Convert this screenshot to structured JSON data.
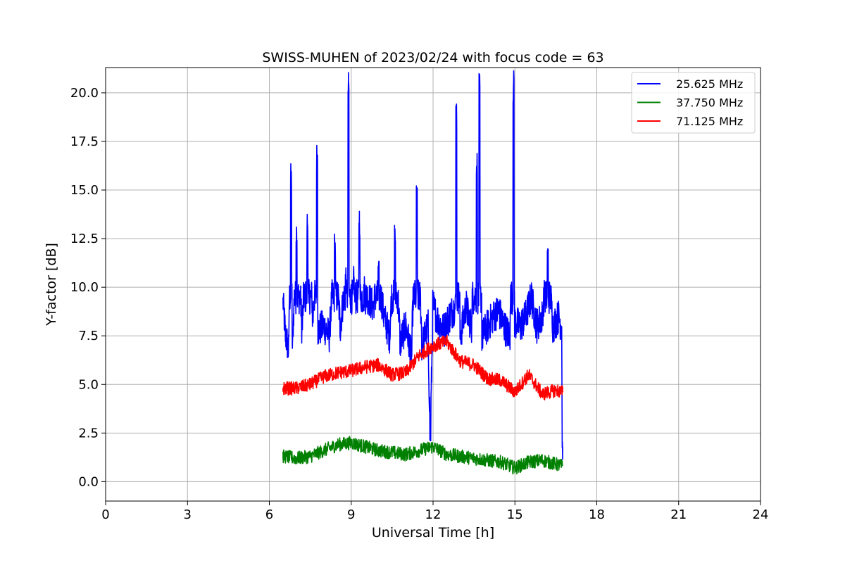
{
  "chart_data": {
    "type": "line",
    "title": "SWISS-MUHEN of 2023/02/24 with focus code = 63",
    "xlabel": "Universal Time [h]",
    "ylabel": "Y-factor [dB]",
    "xlim": [
      0,
      24
    ],
    "ylim": [
      -1.0,
      21.3
    ],
    "xticks": [
      0,
      3,
      6,
      9,
      12,
      15,
      18,
      21,
      24
    ],
    "xtick_labels": [
      "0",
      "3",
      "6",
      "9",
      "12",
      "15",
      "18",
      "21",
      "24"
    ],
    "yticks": [
      0.0,
      2.5,
      5.0,
      7.5,
      10.0,
      12.5,
      15.0,
      17.5,
      20.0
    ],
    "ytick_labels": [
      "0.0",
      "2.5",
      "5.0",
      "7.5",
      "10.0",
      "12.5",
      "15.0",
      "17.5",
      "20.0"
    ],
    "grid": true,
    "legend_position": "top-right",
    "series": [
      {
        "name": "25.625 MHz",
        "color": "#0000ff",
        "x": [
          6.5,
          6.6,
          6.7,
          6.8,
          6.85,
          7.0,
          7.2,
          7.4,
          7.6,
          7.75,
          7.8,
          8.0,
          8.2,
          8.4,
          8.6,
          8.8,
          8.9,
          8.95,
          9.1,
          9.3,
          9.5,
          9.8,
          10.0,
          10.2,
          10.4,
          10.6,
          10.8,
          11.0,
          11.2,
          11.4,
          11.6,
          11.8,
          11.9,
          12.0,
          12.2,
          12.4,
          12.6,
          12.8,
          12.85,
          13.0,
          13.2,
          13.4,
          13.6,
          13.7,
          13.8,
          14.0,
          14.2,
          14.4,
          14.6,
          14.8,
          14.95,
          15.0,
          15.2,
          15.4,
          15.6,
          15.8,
          16.0,
          16.2,
          16.4,
          16.6,
          16.7,
          16.75
        ],
        "y": [
          9.2,
          7.5,
          6.8,
          15.5,
          7.2,
          12.8,
          8.0,
          13.2,
          8.5,
          16.6,
          7.8,
          8.0,
          7.5,
          12.0,
          8.0,
          10.5,
          20.2,
          9.5,
          10.2,
          13.5,
          9.8,
          9.0,
          10.5,
          8.5,
          7.5,
          12.5,
          7.2,
          8.0,
          6.5,
          14.4,
          7.0,
          8.0,
          2.5,
          9.0,
          8.2,
          7.8,
          8.5,
          9.0,
          19.0,
          7.5,
          9.0,
          8.0,
          16.2,
          20.1,
          7.5,
          8.0,
          8.5,
          8.8,
          8.0,
          7.5,
          20.3,
          8.2,
          8.0,
          8.5,
          9.5,
          8.0,
          8.5,
          11.5,
          8.0,
          8.5,
          8.0,
          1.8
        ]
      },
      {
        "name": "37.750 MHz",
        "color": "#008000",
        "x": [
          6.5,
          7.0,
          7.5,
          8.0,
          8.5,
          9.0,
          9.5,
          10.0,
          10.5,
          11.0,
          11.5,
          12.0,
          12.5,
          13.0,
          13.5,
          14.0,
          14.5,
          15.0,
          15.5,
          16.0,
          16.5,
          16.75
        ],
        "y": [
          1.3,
          1.2,
          1.3,
          1.6,
          1.9,
          2.0,
          1.8,
          1.6,
          1.5,
          1.4,
          1.6,
          1.8,
          1.4,
          1.3,
          1.2,
          1.1,
          1.0,
          0.7,
          1.0,
          1.1,
          0.9,
          0.8
        ]
      },
      {
        "name": "71.125 MHz",
        "color": "#ff0000",
        "x": [
          6.5,
          7.0,
          7.5,
          8.0,
          8.5,
          9.0,
          9.5,
          10.0,
          10.5,
          11.0,
          11.5,
          12.0,
          12.5,
          13.0,
          13.5,
          14.0,
          14.5,
          15.0,
          15.5,
          16.0,
          16.5,
          16.75
        ],
        "y": [
          4.8,
          4.8,
          5.0,
          5.4,
          5.6,
          5.7,
          5.9,
          6.0,
          5.5,
          5.6,
          6.5,
          7.0,
          7.2,
          6.2,
          6.0,
          5.3,
          5.2,
          4.6,
          5.5,
          4.5,
          4.7,
          4.6
        ]
      }
    ]
  }
}
